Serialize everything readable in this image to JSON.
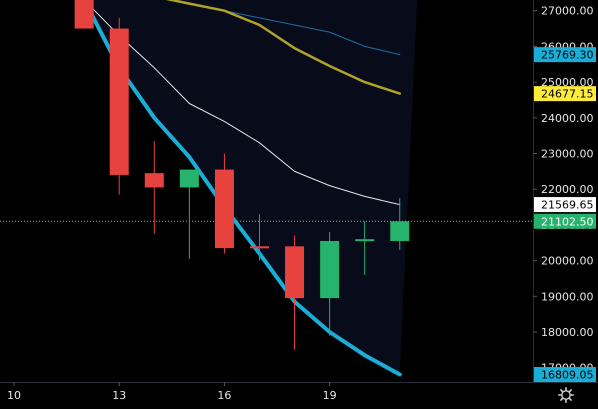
{
  "chart_data": {
    "type": "candlestick",
    "background": "#000000",
    "overlay_region": "#070b1a",
    "price_axis": {
      "ylim": [
        16600,
        27300
      ],
      "tick_labels": [
        "17000.00",
        "18000.00",
        "19000.00",
        "20000.00",
        "21000.00",
        "22000.00",
        "23000.00",
        "24000.00",
        "25000.00",
        "26000.00",
        "27000.00"
      ],
      "tick_values": [
        17000,
        18000,
        19000,
        20000,
        21000,
        22000,
        23000,
        24000,
        25000,
        26000,
        27000
      ]
    },
    "time_axis": {
      "xlim": [
        9.6,
        24.8
      ],
      "tick_labels": [
        "10",
        "13",
        "16",
        "19"
      ],
      "tick_values": [
        10,
        13,
        16,
        19
      ]
    },
    "candles": [
      {
        "x": 12,
        "open": 27400,
        "high": 27500,
        "low": 26500,
        "close": 26500
      },
      {
        "x": 13,
        "open": 26500,
        "high": 26800,
        "low": 21850,
        "close": 22400
      },
      {
        "x": 14,
        "open": 22450,
        "high": 23350,
        "low": 20750,
        "close": 22050
      },
      {
        "x": 15,
        "open": 22050,
        "high": 22500,
        "low": 20050,
        "close": 22550
      },
      {
        "x": 16,
        "open": 22550,
        "high": 23000,
        "low": 20200,
        "close": 20350
      },
      {
        "x": 17,
        "open": 20400,
        "high": 21300,
        "low": 20000,
        "close": 20350
      },
      {
        "x": 18,
        "open": 20400,
        "high": 20700,
        "low": 17500,
        "close": 18950
      },
      {
        "x": 19,
        "open": 18950,
        "high": 20800,
        "low": 17900,
        "close": 20550
      },
      {
        "x": 20,
        "open": 20550,
        "high": 21100,
        "low": 19600,
        "close": 20600
      },
      {
        "x": 21,
        "open": 20550,
        "high": 21750,
        "low": 20300,
        "close": 21100
      }
    ],
    "up_color": "#26b36b",
    "down_color": "#e8423f",
    "series": [
      {
        "color": "#1b6ea8",
        "x": [
          12,
          13,
          14,
          15,
          16,
          17,
          18,
          19,
          20,
          21
        ],
        "values": [
          27800,
          27600,
          27400,
          27200,
          27000,
          26800,
          26600,
          26400,
          26000,
          25769.3
        ]
      },
      {
        "color": "#b0a22a",
        "x": [
          12,
          13,
          14,
          15,
          16,
          17,
          18,
          19,
          20,
          21
        ],
        "values": [
          27800,
          27600,
          27400,
          27200,
          27000,
          26600,
          25950,
          25450,
          25000,
          24677.15
        ]
      },
      {
        "color": "#e6e6e6",
        "x": [
          12,
          13,
          14,
          15,
          16,
          17,
          18,
          19,
          20,
          21
        ],
        "values": [
          27300,
          26300,
          25400,
          24400,
          23900,
          23300,
          22500,
          22100,
          21800,
          21569.65
        ]
      },
      {
        "color": "#1aaed6",
        "x": [
          12,
          13,
          14,
          15,
          16,
          17,
          18,
          19,
          20,
          21
        ],
        "values": [
          27300,
          25400,
          24000,
          22900,
          21500,
          20200,
          18850,
          18000,
          17350,
          16809.05
        ]
      }
    ],
    "current_price": 21102.5,
    "price_badges": [
      {
        "value": 25769.3,
        "label": "25769.30",
        "bg": "#1aaed6",
        "fg": "#000000"
      },
      {
        "value": 24677.15,
        "label": "24677.15",
        "bg": "#ffeb3b",
        "fg": "#000000"
      },
      {
        "value": 21569.65,
        "label": "21569.65",
        "bg": "#ffffff",
        "fg": "#000000"
      },
      {
        "value": 21102.5,
        "label": "21102.50",
        "bg": "#26b36b",
        "fg": "#ffffff"
      },
      {
        "value": 16809.05,
        "label": "16809.05",
        "bg": "#1aaed6",
        "fg": "#000000"
      }
    ]
  },
  "controls": {
    "settings_icon": "gear-icon"
  }
}
